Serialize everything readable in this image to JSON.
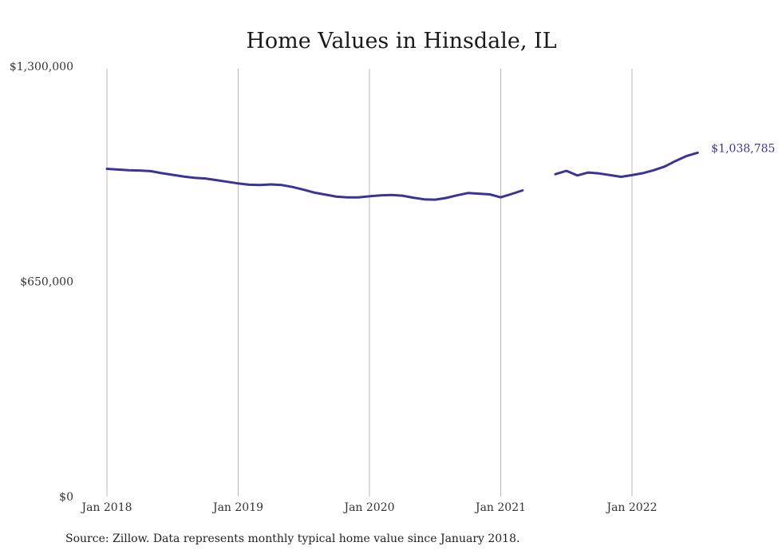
{
  "colors": {
    "series": "#3b3494",
    "grid": "#b8b8b8",
    "text": "#333333"
  },
  "source_text": "Source: Zillow. Data represents monthly typical home value since January 2018.",
  "chart_data": {
    "type": "line",
    "title": "Home Values in Hinsdale, IL",
    "xlabel": "",
    "ylabel": "",
    "ylim": [
      0,
      1300000
    ],
    "yticks": [
      {
        "value": 0,
        "label": "$0"
      },
      {
        "value": 650000,
        "label": "$650,000"
      },
      {
        "value": 1300000,
        "label": "$1,300,000"
      }
    ],
    "xticks": [
      {
        "value": "2018-01",
        "label": "Jan 2018"
      },
      {
        "value": "2019-01",
        "label": "Jan 2019"
      },
      {
        "value": "2020-01",
        "label": "Jan 2020"
      },
      {
        "value": "2021-01",
        "label": "Jan 2021"
      },
      {
        "value": "2022-01",
        "label": "Jan 2022"
      }
    ],
    "grid": "vertical",
    "end_label": "$1,038,785",
    "series": [
      {
        "x": [
          "2018-01",
          "2018-02",
          "2018-03",
          "2018-04",
          "2018-05",
          "2018-06",
          "2018-07",
          "2018-08",
          "2018-09",
          "2018-10",
          "2018-11",
          "2018-12",
          "2019-01",
          "2019-02",
          "2019-03",
          "2019-04",
          "2019-05",
          "2019-06",
          "2019-07",
          "2019-08",
          "2019-09",
          "2019-10",
          "2019-11",
          "2019-12",
          "2020-01",
          "2020-02",
          "2020-03",
          "2020-04",
          "2020-05",
          "2020-06",
          "2020-07",
          "2020-08",
          "2020-09",
          "2020-10",
          "2020-11",
          "2020-12",
          "2021-01",
          "2021-02",
          "2021-03",
          "2021-04",
          "2021-05",
          "2021-06",
          "2021-07",
          "2021-08",
          "2021-09",
          "2021-10",
          "2021-11",
          "2021-12",
          "2022-01",
          "2022-02",
          "2022-03",
          "2022-04",
          "2022-05",
          "2022-06",
          "2022-07"
        ],
        "values": [
          990000,
          988000,
          986000,
          985000,
          983000,
          977000,
          972000,
          967000,
          963000,
          961000,
          956000,
          951000,
          946000,
          942000,
          941000,
          943000,
          941000,
          935000,
          927000,
          918000,
          912000,
          906000,
          904000,
          904000,
          907000,
          910000,
          911000,
          909000,
          903000,
          898000,
          897000,
          902000,
          910000,
          917000,
          915000,
          913000,
          904000,
          914000,
          925000,
          null,
          null,
          974000,
          984000,
          970000,
          979000,
          976000,
          971000,
          966000,
          971000,
          977000,
          986000,
          997000,
          1014000,
          1029000,
          1038785
        ]
      }
    ]
  }
}
